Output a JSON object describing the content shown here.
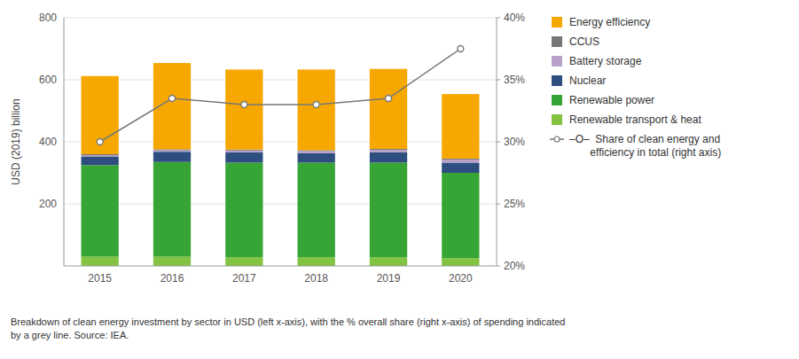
{
  "chart_data": {
    "type": "bar",
    "stacked": true,
    "categories": [
      "2015",
      "2016",
      "2017",
      "2018",
      "2019",
      "2020"
    ],
    "series": [
      {
        "name": "Renewable transport & heat",
        "color": "#82C341",
        "values": [
          30,
          30,
          28,
          28,
          28,
          25
        ]
      },
      {
        "name": "Renewable power",
        "color": "#36A535",
        "values": [
          295,
          305,
          305,
          305,
          305,
          275
        ]
      },
      {
        "name": "Nuclear",
        "color": "#2D4E7E",
        "values": [
          28,
          33,
          33,
          30,
          33,
          33
        ]
      },
      {
        "name": "Battery storage",
        "color": "#B8A0C8",
        "values": [
          4,
          5,
          6,
          7,
          8,
          10
        ]
      },
      {
        "name": "CCUS",
        "color": "#777777",
        "values": [
          3,
          3,
          3,
          3,
          3,
          3
        ]
      },
      {
        "name": "Energy efficiency",
        "color": "#F7A800",
        "values": [
          252,
          278,
          258,
          260,
          258,
          208
        ]
      },
      {
        "name": "–O–  Share of clean energy and\n       efficiency in total (right axis)",
        "type": "line",
        "axis": "y2",
        "color": "#777777",
        "marker": "circle",
        "values": [
          30.0,
          33.5,
          33.0,
          33.0,
          33.5,
          37.5
        ]
      }
    ],
    "y_label": "USD (2019) billion",
    "ylim": [
      0,
      800
    ],
    "yticks": [
      200,
      400,
      600,
      800
    ],
    "y2lim": [
      20,
      40
    ],
    "y2ticks": [
      {
        "value": 20,
        "label": "20%"
      },
      {
        "value": 25,
        "label": "25%"
      },
      {
        "value": 30,
        "label": "30%"
      },
      {
        "value": 35,
        "label": "35%"
      },
      {
        "value": 40,
        "label": "40%"
      }
    ],
    "grid": true,
    "legend": "right",
    "caption": "Breakdown of clean energy investment by sector in USD (left x-axis), with the % overall share (right x-axis) of spending indicated\nby a grey line. Source: IEA."
  }
}
